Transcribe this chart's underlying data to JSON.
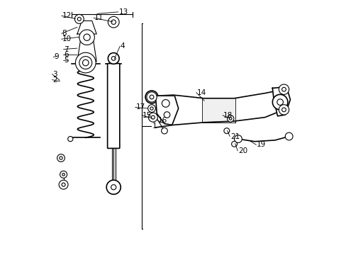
{
  "background_color": "#ffffff",
  "line_color": "#000000",
  "label_color": "#000000",
  "fig_width": 4.89,
  "fig_height": 3.6,
  "dpi": 100
}
